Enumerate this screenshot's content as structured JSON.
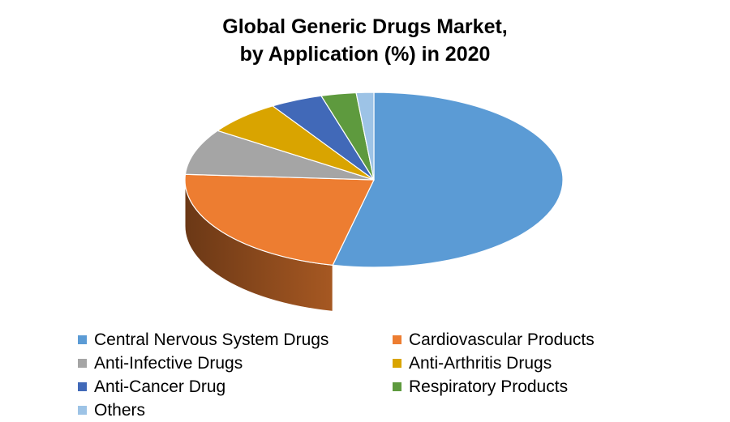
{
  "chart_data": {
    "type": "pie",
    "title": [
      "Global Generic Drugs Market,",
      "by Application (%) in 2020"
    ],
    "categories": [
      "Central Nervous System Drugs",
      "Cardiovascular Products",
      "Anti-Infective Drugs",
      "Anti-Arthritis Drugs",
      "Anti-Cancer Drug",
      "Respiratory Products",
      "Others"
    ],
    "values": [
      53.5,
      22.5,
      8.5,
      6.5,
      4.5,
      3.0,
      1.5
    ],
    "colors": [
      "#5B9BD5",
      "#ED7D31",
      "#A5A5A5",
      "#D9A400",
      "#4169B8",
      "#5E9A3E",
      "#9DC3E6"
    ],
    "legend_position": "bottom",
    "style": "3d-pie"
  }
}
